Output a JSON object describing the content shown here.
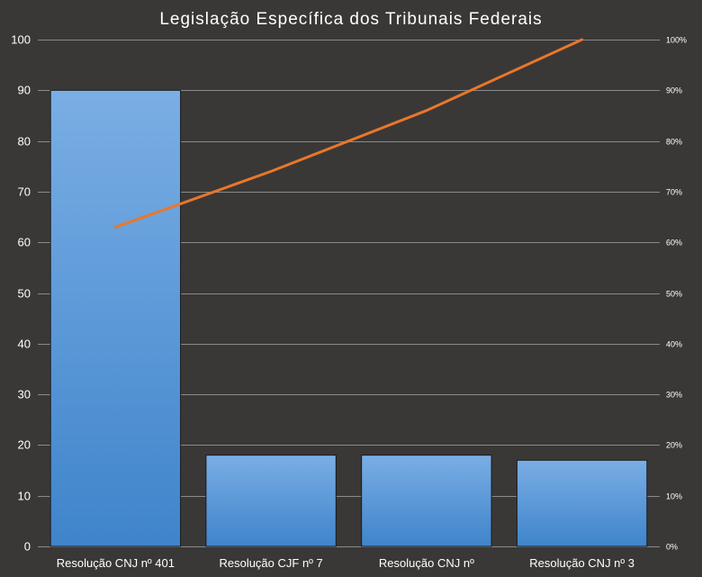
{
  "chart_data": {
    "type": "bar",
    "title": "Legislação Específica dos Tribunais Federais",
    "categories": [
      "Resolução CNJ nº 401",
      "Resolução CJF nº 7",
      "Resolução CNJ nº",
      "Resolução CNJ nº 3"
    ],
    "series": [
      {
        "type": "bar",
        "axis": "left",
        "values": [
          90,
          18,
          18,
          17
        ]
      },
      {
        "type": "line",
        "axis": "right",
        "values": [
          63,
          74,
          86,
          100
        ]
      }
    ],
    "ylim": [
      0,
      100
    ],
    "yticks": [
      "0",
      "10",
      "20",
      "30",
      "40",
      "50",
      "60",
      "70",
      "80",
      "90",
      "100"
    ],
    "y2lim": [
      0,
      100
    ],
    "y2ticks": [
      "0%",
      "10%",
      "20%",
      "30%",
      "40%",
      "50%",
      "60%",
      "70%",
      "80%",
      "90%",
      "100%"
    ],
    "grid": true,
    "legend": "none",
    "colors": {
      "background": "#3a3837",
      "bar_top": "#7aaee4",
      "bar_bottom": "#3f84cb",
      "line": "#e9772b",
      "grid": "#8a8a8a",
      "text": "#ffffff"
    }
  }
}
